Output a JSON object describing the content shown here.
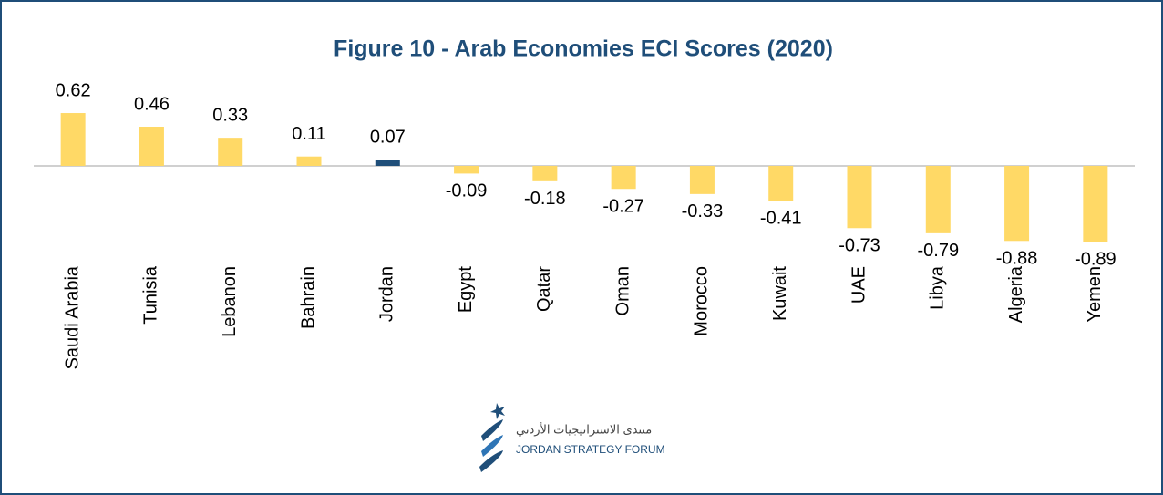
{
  "chart_data": {
    "type": "bar",
    "title": "Figure 10 - Arab Economies ECI Scores (2020)",
    "categories": [
      "Saudi Arabia",
      "Tunisia",
      "Lebanon",
      "Bahrain",
      "Jordan",
      "Egypt",
      "Qatar",
      "Oman",
      "Morocco",
      "Kuwait",
      "UAE",
      "Libya",
      "Algeria",
      "Yemen"
    ],
    "values": [
      0.62,
      0.46,
      0.33,
      0.11,
      0.07,
      -0.09,
      -0.18,
      -0.27,
      -0.33,
      -0.41,
      -0.73,
      -0.79,
      -0.88,
      -0.89
    ],
    "colors": [
      "#ffd966",
      "#ffd966",
      "#ffd966",
      "#ffd966",
      "#1f4e79",
      "#ffd966",
      "#ffd966",
      "#ffd966",
      "#ffd966",
      "#ffd966",
      "#ffd966",
      "#ffd966",
      "#ffd966",
      "#ffd966"
    ],
    "ylim": [
      -1,
      1
    ]
  },
  "logo": {
    "arabic": "منتدى الاستراتيجيات الأردني",
    "english": "JORDAN STRATEGY FORUM"
  }
}
